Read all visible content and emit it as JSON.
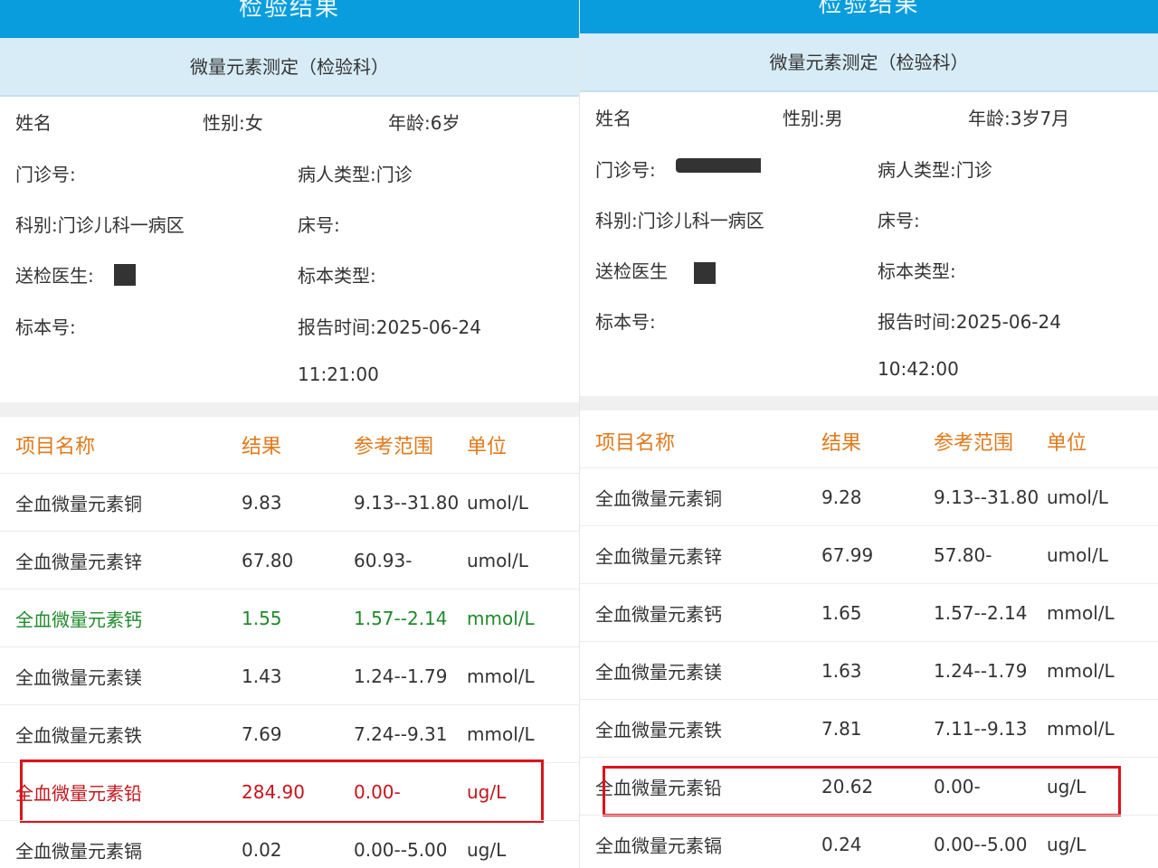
{
  "colors": {
    "header": "#0a9ddd",
    "band": "#d7ecf6",
    "column_header": "#e07a1c",
    "low": "#1f8a2b",
    "high": "#c3161c",
    "highlight_box": "#d9141c"
  },
  "reports": [
    {
      "header_title": "检验结果",
      "subtitle": "微量元素测定（检验科）",
      "name_label": "姓名",
      "gender": "性别:女",
      "age": "年龄:6岁",
      "clinic_no_label": "门诊号:",
      "patient_type": "病人类型:门诊",
      "department": "科别:门诊儿科一病区",
      "bed_no": "床号:",
      "doctor_label": "送检医生:",
      "specimen_type": "标本类型:",
      "specimen_no": "标本号:",
      "report_time": "报告时间:2025-06-24",
      "report_clock": "11:21:00",
      "columns": [
        "项目名称",
        "结果",
        "参考范围",
        "单位"
      ],
      "rows": [
        {
          "name": "全血微量元素铜",
          "result": "9.83",
          "range": "9.13--31.80",
          "unit": "umol/L",
          "flag": ""
        },
        {
          "name": "全血微量元素锌",
          "result": "67.80",
          "range": "60.93-",
          "unit": "umol/L",
          "flag": ""
        },
        {
          "name": "全血微量元素钙",
          "result": "1.55",
          "range": "1.57--2.14",
          "unit": "mmol/L",
          "flag": "low"
        },
        {
          "name": "全血微量元素镁",
          "result": "1.43",
          "range": "1.24--1.79",
          "unit": "mmol/L",
          "flag": ""
        },
        {
          "name": "全血微量元素铁",
          "result": "7.69",
          "range": "7.24--9.31",
          "unit": "mmol/L",
          "flag": ""
        },
        {
          "name": "全血微量元素铅",
          "result": "284.90",
          "range": "0.00-",
          "unit": "ug/L",
          "flag": "high",
          "highlighted": true
        },
        {
          "name": "全血微量元素镉",
          "result": "0.02",
          "range": "0.00--5.00",
          "unit": "ug/L",
          "flag": ""
        }
      ]
    },
    {
      "header_title": "检验结果",
      "subtitle": "微量元素测定（检验科）",
      "name_label": "姓名",
      "gender": "性别:男",
      "age": "年龄:3岁7月",
      "clinic_no_label": "门诊号:",
      "patient_type": "病人类型:门诊",
      "department": "科别:门诊儿科一病区",
      "bed_no": "床号:",
      "doctor_label": "送检医生",
      "specimen_type": "标本类型:",
      "specimen_no": "标本号:",
      "report_time": "报告时间:2025-06-24",
      "report_clock": "10:42:00",
      "columns": [
        "项目名称",
        "结果",
        "参考范围",
        "单位"
      ],
      "rows": [
        {
          "name": "全血微量元素铜",
          "result": "9.28",
          "range": "9.13--31.80",
          "unit": "umol/L",
          "flag": ""
        },
        {
          "name": "全血微量元素锌",
          "result": "67.99",
          "range": "57.80-",
          "unit": "umol/L",
          "flag": ""
        },
        {
          "name": "全血微量元素钙",
          "result": "1.65",
          "range": "1.57--2.14",
          "unit": "mmol/L",
          "flag": ""
        },
        {
          "name": "全血微量元素镁",
          "result": "1.63",
          "range": "1.24--1.79",
          "unit": "mmol/L",
          "flag": ""
        },
        {
          "name": "全血微量元素铁",
          "result": "7.81",
          "range": "7.11--9.13",
          "unit": "mmol/L",
          "flag": ""
        },
        {
          "name": "全血微量元素铅",
          "result": "20.62",
          "range": "0.00-",
          "unit": "ug/L",
          "flag": "",
          "highlighted": true
        },
        {
          "name": "全血微量元素镉",
          "result": "0.24",
          "range": "0.00--5.00",
          "unit": "ug/L",
          "flag": ""
        }
      ]
    }
  ]
}
